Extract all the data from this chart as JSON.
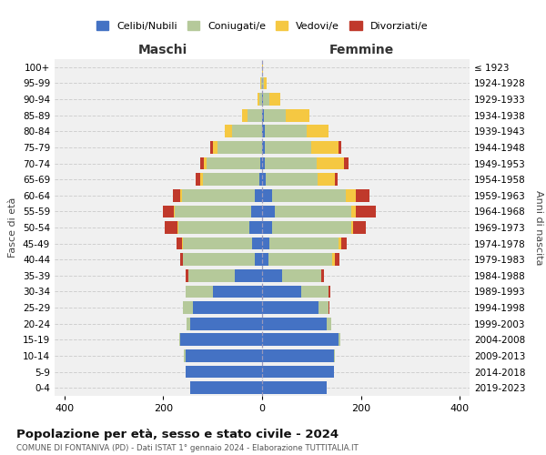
{
  "age_groups": [
    "0-4",
    "5-9",
    "10-14",
    "15-19",
    "20-24",
    "25-29",
    "30-34",
    "35-39",
    "40-44",
    "45-49",
    "50-54",
    "55-59",
    "60-64",
    "65-69",
    "70-74",
    "75-79",
    "80-84",
    "85-89",
    "90-94",
    "95-99",
    "100+"
  ],
  "birth_years": [
    "2019-2023",
    "2014-2018",
    "2009-2013",
    "2004-2008",
    "1999-2003",
    "1994-1998",
    "1989-1993",
    "1984-1988",
    "1979-1983",
    "1974-1978",
    "1969-1973",
    "1964-1968",
    "1959-1963",
    "1954-1958",
    "1949-1953",
    "1944-1948",
    "1939-1943",
    "1934-1938",
    "1929-1933",
    "1924-1928",
    "≤ 1923"
  ],
  "male": {
    "celibi": [
      145,
      155,
      155,
      165,
      145,
      140,
      100,
      55,
      15,
      20,
      25,
      22,
      15,
      5,
      3,
      0,
      0,
      0,
      0,
      0,
      0
    ],
    "coniugati": [
      0,
      0,
      3,
      3,
      8,
      20,
      55,
      95,
      145,
      140,
      145,
      155,
      148,
      115,
      110,
      90,
      60,
      30,
      5,
      2,
      0
    ],
    "vedovi": [
      0,
      0,
      0,
      0,
      0,
      0,
      0,
      0,
      0,
      2,
      2,
      2,
      2,
      5,
      5,
      10,
      15,
      10,
      5,
      1,
      0
    ],
    "divorziati": [
      0,
      0,
      0,
      0,
      0,
      0,
      0,
      5,
      5,
      12,
      25,
      22,
      15,
      10,
      8,
      5,
      0,
      0,
      0,
      0,
      0
    ]
  },
  "female": {
    "nubili": [
      130,
      145,
      145,
      155,
      130,
      115,
      80,
      40,
      12,
      15,
      20,
      25,
      20,
      8,
      5,
      5,
      5,
      3,
      2,
      0,
      0
    ],
    "coniugate": [
      0,
      0,
      3,
      3,
      10,
      20,
      55,
      80,
      130,
      140,
      160,
      155,
      150,
      105,
      105,
      95,
      85,
      45,
      12,
      4,
      0
    ],
    "vedove": [
      0,
      0,
      0,
      0,
      0,
      0,
      0,
      0,
      5,
      5,
      5,
      10,
      20,
      35,
      55,
      55,
      45,
      48,
      22,
      6,
      1
    ],
    "divorziate": [
      0,
      0,
      0,
      0,
      0,
      2,
      3,
      5,
      10,
      12,
      25,
      40,
      28,
      5,
      10,
      5,
      0,
      0,
      0,
      0,
      0
    ]
  },
  "colors": {
    "celibi": "#4472c4",
    "coniugati": "#b5c99a",
    "vedovi": "#f5c842",
    "divorziati": "#c0392b"
  },
  "title": "Popolazione per età, sesso e stato civile - 2024",
  "subtitle": "COMUNE DI FONTANIVA (PD) - Dati ISTAT 1° gennaio 2024 - Elaborazione TUTTITALIA.IT",
  "xlabel_left": "Maschi",
  "xlabel_right": "Femmine",
  "ylabel_left": "Fasce di età",
  "ylabel_right": "Anni di nascita",
  "xlim": 420,
  "background_color": "#ffffff",
  "plot_bg": "#f0f0f0",
  "grid_color": "#cccccc"
}
